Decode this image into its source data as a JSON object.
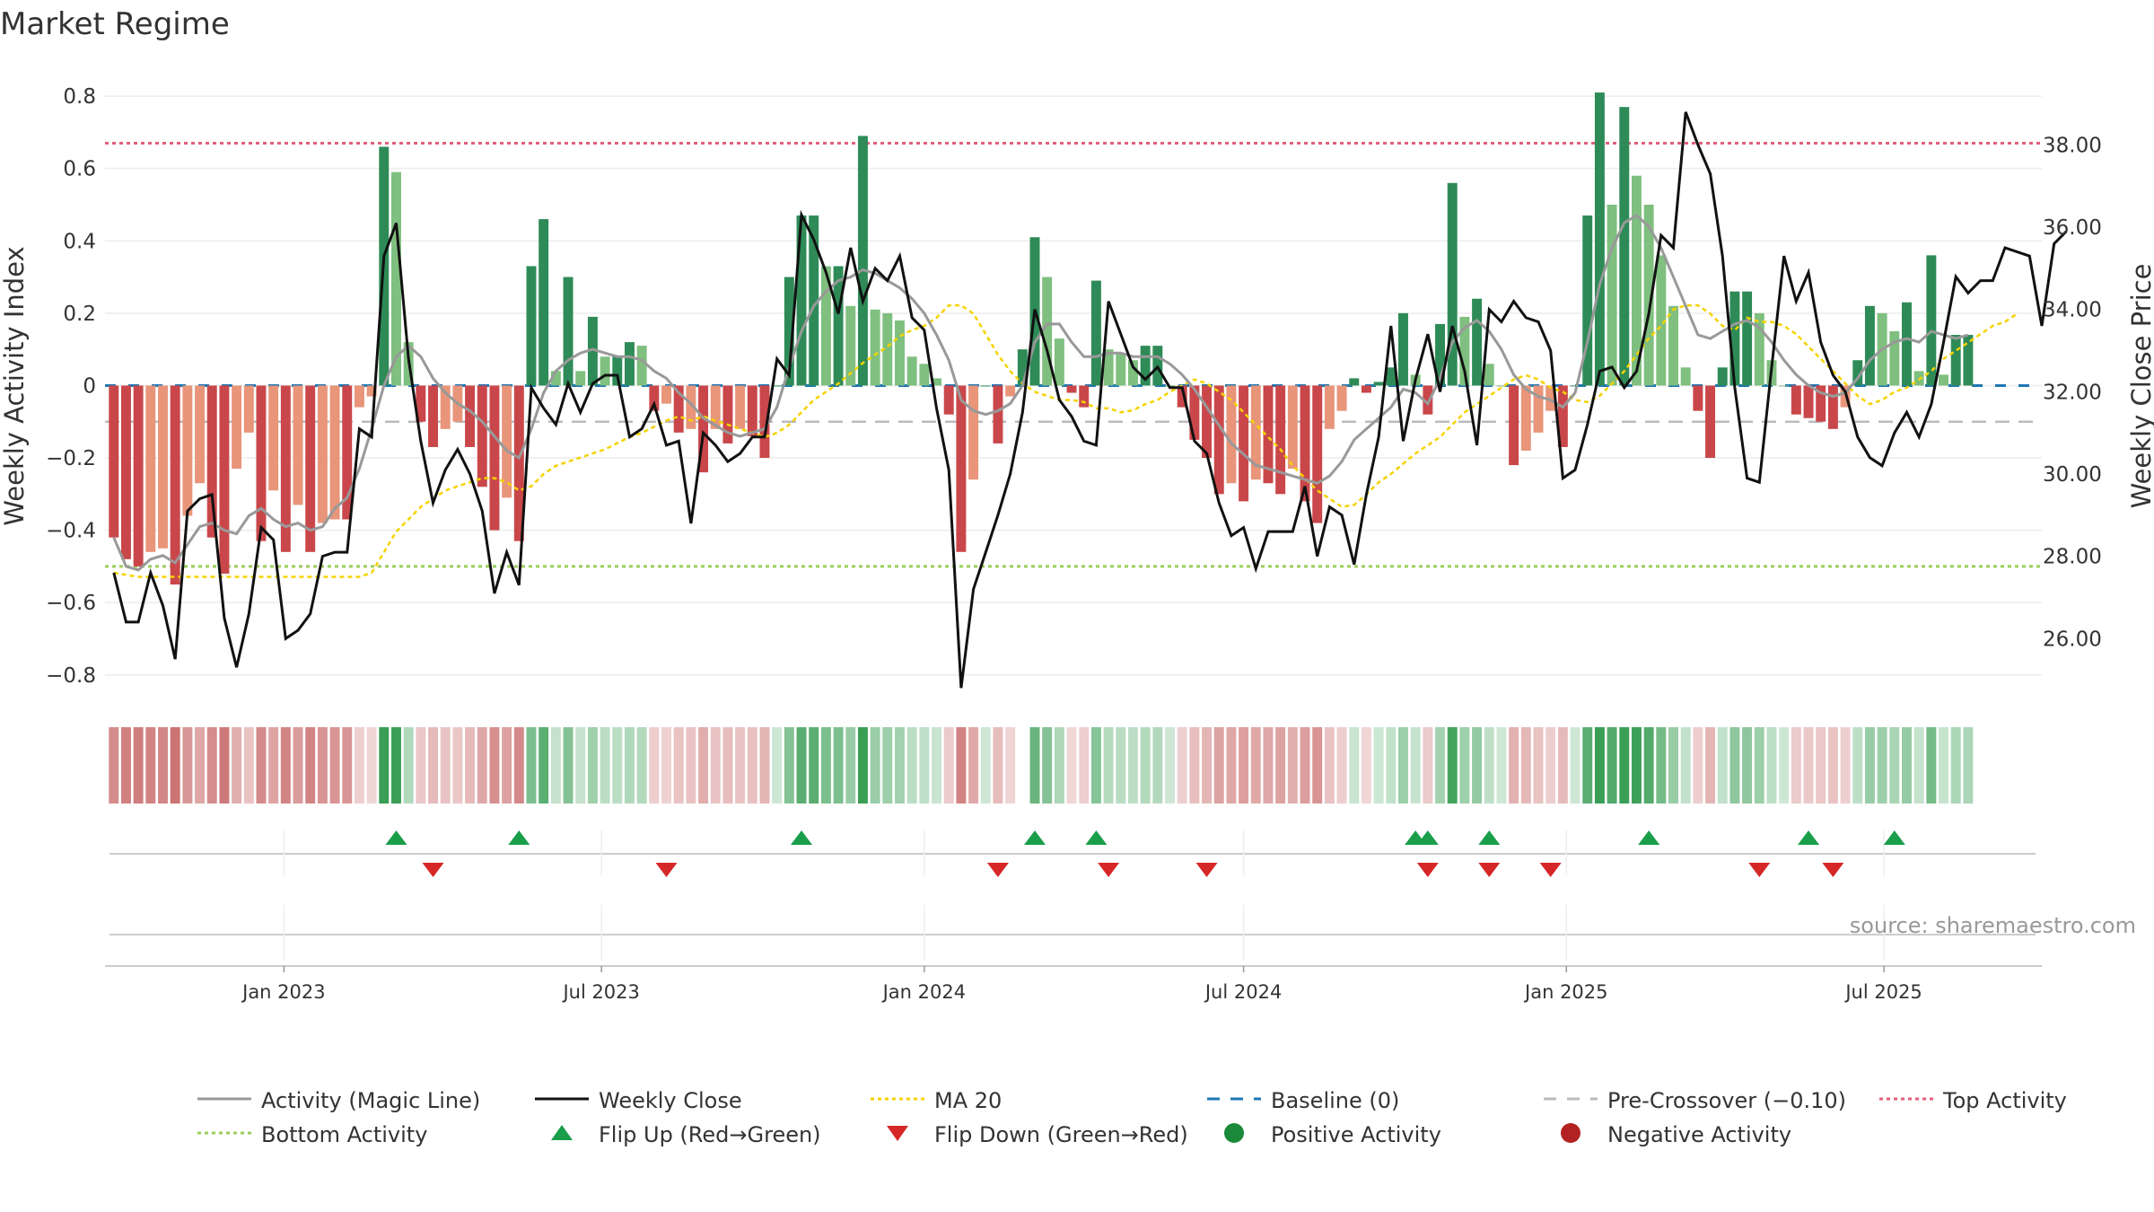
{
  "title": "Market Regime",
  "source": "source: sharemaestro.com",
  "colors": {
    "strong_green": "#2e8b57",
    "light_green": "#7fbf7f",
    "strong_red": "#c9474a",
    "light_red": "#e8957a",
    "magic_line": "#999999",
    "close": "#111111",
    "ma20": "#f5d300",
    "baseline": "#1f77b4",
    "pre_crossover": "#bbbbbb",
    "top": "#e0607a",
    "bottom": "#9acd5a",
    "flip_up": "#1a9e4a",
    "flip_down": "#d62728"
  },
  "chart_data": {
    "type": "bar",
    "x_start": "2022-09-26",
    "x_step_days": 7,
    "xlim": [
      "2022-09-21",
      "2025-09-29"
    ],
    "x_ticks": [
      {
        "date": "2023-01-01",
        "label": "Jan 2023"
      },
      {
        "date": "2023-07-01",
        "label": "Jul 2023"
      },
      {
        "date": "2024-01-01",
        "label": "Jan 2024"
      },
      {
        "date": "2024-07-01",
        "label": "Jul 2024"
      },
      {
        "date": "2025-01-01",
        "label": "Jan 2025"
      },
      {
        "date": "2025-07-01",
        "label": "Jul 2025"
      }
    ],
    "y_left": {
      "label": "Weekly Activity Index",
      "lim": [
        -0.87,
        0.83
      ],
      "ticks": [
        0.8,
        0.6,
        0.4,
        0.2,
        0,
        -0.2,
        -0.4,
        -0.6,
        -0.8
      ],
      "tick_labels": [
        "0.8",
        "0.6",
        "0.4",
        "0.2",
        "0",
        "−0.2",
        "−0.4",
        "−0.6",
        "−0.8"
      ]
    },
    "y_right": {
      "label": "Weekly Close Price",
      "lim": [
        24.5,
        39.45
      ],
      "ticks": [
        38,
        36,
        34,
        32,
        30,
        28,
        26
      ],
      "tick_labels": [
        "38.00",
        "36.00",
        "34.00",
        "32.00",
        "30.00",
        "28.00",
        "26.00"
      ]
    },
    "activity": [
      -0.42,
      -0.48,
      -0.5,
      -0.46,
      -0.45,
      -0.55,
      -0.36,
      -0.27,
      -0.42,
      -0.52,
      -0.23,
      -0.13,
      -0.43,
      -0.29,
      -0.46,
      -0.33,
      -0.46,
      -0.38,
      -0.37,
      -0.37,
      -0.06,
      -0.03,
      0.66,
      0.59,
      0.12,
      -0.1,
      -0.17,
      -0.12,
      -0.1,
      -0.17,
      -0.28,
      -0.4,
      -0.31,
      -0.43,
      0.33,
      0.46,
      0.04,
      0.3,
      0.04,
      0.19,
      0.08,
      0.08,
      0.12,
      0.11,
      -0.07,
      -0.05,
      -0.13,
      -0.12,
      -0.24,
      -0.12,
      -0.16,
      -0.12,
      -0.14,
      -0.2,
      0.0,
      0.3,
      0.47,
      0.47,
      0.33,
      0.33,
      0.22,
      0.69,
      0.21,
      0.2,
      0.18,
      0.08,
      0.06,
      0.02,
      -0.08,
      -0.46,
      -0.26,
      0.0,
      -0.16,
      -0.03,
      0.1,
      0.41,
      0.3,
      0.13,
      -0.02,
      -0.06,
      0.29,
      0.1,
      0.09,
      0.07,
      0.11,
      0.11,
      0.0,
      -0.06,
      -0.15,
      -0.2,
      -0.3,
      -0.27,
      -0.32,
      -0.26,
      -0.27,
      -0.3,
      -0.23,
      -0.32,
      -0.38,
      -0.12,
      -0.07,
      0.02,
      -0.02,
      0.01,
      0.05,
      0.2,
      0.03,
      -0.08,
      0.17,
      0.56,
      0.19,
      0.24,
      0.06,
      0.0,
      -0.22,
      -0.18,
      -0.13,
      -0.07,
      -0.17,
      0.0,
      0.47,
      0.81,
      0.5,
      0.77,
      0.58,
      0.5,
      0.36,
      0.22,
      0.05,
      -0.07,
      -0.2,
      0.05,
      0.26,
      0.26,
      0.2,
      0.07,
      0.0,
      -0.08,
      -0.09,
      -0.1,
      -0.12,
      -0.06,
      0.07,
      0.22,
      0.2,
      0.15,
      0.23,
      0.04,
      0.36,
      0.03,
      0.14,
      0.14
    ],
    "magic_line": [
      -0.42,
      -0.5,
      -0.51,
      -0.48,
      -0.47,
      -0.49,
      -0.44,
      -0.39,
      -0.38,
      -0.4,
      -0.41,
      -0.36,
      -0.34,
      -0.37,
      -0.39,
      -0.38,
      -0.4,
      -0.39,
      -0.34,
      -0.31,
      -0.23,
      -0.12,
      0.0,
      0.08,
      0.11,
      0.08,
      0.02,
      -0.02,
      -0.05,
      -0.07,
      -0.1,
      -0.14,
      -0.18,
      -0.2,
      -0.12,
      -0.02,
      0.04,
      0.07,
      0.09,
      0.1,
      0.09,
      0.08,
      0.08,
      0.07,
      0.04,
      0.02,
      -0.02,
      -0.05,
      -0.09,
      -0.11,
      -0.13,
      -0.14,
      -0.13,
      -0.12,
      -0.06,
      0.05,
      0.15,
      0.22,
      0.26,
      0.29,
      0.3,
      0.32,
      0.31,
      0.29,
      0.27,
      0.24,
      0.2,
      0.14,
      0.07,
      -0.04,
      -0.07,
      -0.08,
      -0.07,
      -0.05,
      0.0,
      0.12,
      0.17,
      0.17,
      0.12,
      0.08,
      0.08,
      0.09,
      0.09,
      0.08,
      0.08,
      0.08,
      0.06,
      0.03,
      -0.01,
      -0.06,
      -0.11,
      -0.16,
      -0.19,
      -0.22,
      -0.23,
      -0.24,
      -0.25,
      -0.26,
      -0.27,
      -0.25,
      -0.21,
      -0.15,
      -0.12,
      -0.09,
      -0.06,
      -0.01,
      -0.02,
      -0.05,
      0.02,
      0.12,
      0.16,
      0.18,
      0.15,
      0.1,
      0.03,
      -0.01,
      -0.03,
      -0.04,
      -0.06,
      -0.02,
      0.12,
      0.28,
      0.38,
      0.45,
      0.47,
      0.44,
      0.38,
      0.3,
      0.22,
      0.14,
      0.13,
      0.15,
      0.17,
      0.18,
      0.16,
      0.12,
      0.07,
      0.03,
      0.0,
      -0.02,
      -0.03,
      -0.02,
      0.02,
      0.07,
      0.1,
      0.12,
      0.13,
      0.12,
      0.15,
      0.14,
      0.13,
      0.14
    ],
    "weekly_close": [
      27.6,
      26.4,
      26.4,
      27.6,
      26.8,
      25.5,
      29.1,
      29.4,
      29.5,
      26.5,
      25.3,
      26.6,
      28.7,
      28.4,
      26.0,
      26.2,
      26.6,
      28.0,
      28.1,
      28.1,
      31.1,
      30.9,
      35.3,
      36.1,
      32.8,
      30.8,
      29.3,
      30.1,
      30.6,
      30.0,
      29.1,
      27.1,
      28.1,
      27.3,
      32.1,
      31.6,
      31.2,
      32.2,
      31.5,
      32.2,
      32.4,
      32.4,
      30.9,
      31.1,
      31.7,
      30.7,
      30.8,
      28.8,
      31.0,
      30.7,
      30.3,
      30.5,
      30.9,
      30.9,
      32.8,
      32.4,
      36.3,
      35.7,
      34.9,
      33.9,
      35.5,
      34.2,
      35.0,
      34.7,
      35.3,
      33.8,
      33.5,
      31.6,
      30.1,
      24.8,
      27.2,
      28.1,
      29.0,
      30.0,
      31.5,
      34.0,
      33.0,
      31.8,
      31.4,
      30.8,
      30.7,
      34.2,
      33.4,
      32.6,
      32.3,
      32.6,
      32.1,
      32.1,
      30.8,
      30.5,
      29.3,
      28.5,
      28.7,
      27.7,
      28.6,
      28.6,
      28.6,
      29.7,
      28.0,
      29.2,
      29.0,
      27.8,
      29.5,
      30.9,
      33.6,
      30.8,
      32.3,
      33.4,
      32.0,
      33.6,
      32.5,
      30.7,
      34.0,
      33.7,
      34.2,
      33.8,
      33.7,
      33.0,
      29.9,
      30.1,
      31.2,
      32.5,
      32.6,
      32.1,
      32.5,
      33.9,
      35.8,
      35.5,
      38.8,
      38.0,
      37.3,
      35.3,
      32.1,
      29.9,
      29.8,
      32.6,
      35.3,
      34.2,
      34.9,
      33.2,
      32.4,
      32.0,
      30.9,
      30.4,
      30.2,
      31.0,
      31.5,
      30.9,
      31.7,
      33.2,
      34.8,
      34.4,
      34.7,
      34.7,
      35.5,
      35.4,
      35.3,
      33.6,
      35.6,
      35.9
    ],
    "ma20": [
      27.6,
      27.55,
      27.5,
      27.5,
      27.5,
      27.5,
      27.5,
      27.5,
      27.5,
      27.5,
      27.5,
      27.5,
      27.5,
      27.5,
      27.5,
      27.5,
      27.5,
      27.5,
      27.5,
      27.5,
      27.5,
      27.6,
      28.1,
      28.6,
      28.9,
      29.2,
      29.4,
      29.6,
      29.7,
      29.8,
      29.9,
      29.9,
      29.8,
      29.6,
      29.7,
      30.0,
      30.2,
      30.3,
      30.4,
      30.5,
      30.6,
      30.75,
      30.9,
      31.0,
      31.15,
      31.3,
      31.4,
      31.3,
      31.4,
      31.3,
      31.2,
      31.1,
      31.0,
      30.9,
      31.0,
      31.2,
      31.5,
      31.8,
      32.0,
      32.2,
      32.45,
      32.7,
      32.9,
      33.1,
      33.35,
      33.5,
      33.6,
      33.8,
      34.1,
      34.1,
      33.9,
      33.4,
      32.9,
      32.5,
      32.2,
      32.0,
      31.9,
      31.8,
      31.8,
      31.75,
      31.6,
      31.6,
      31.5,
      31.55,
      31.7,
      31.8,
      32.0,
      32.15,
      32.3,
      32.2,
      32.0,
      31.8,
      31.5,
      31.2,
      30.9,
      30.6,
      30.2,
      29.9,
      29.6,
      29.4,
      29.2,
      29.25,
      29.5,
      29.8,
      30.0,
      30.25,
      30.5,
      30.7,
      30.9,
      31.2,
      31.5,
      31.7,
      31.9,
      32.1,
      32.3,
      32.4,
      32.3,
      32.1,
      32.0,
      31.8,
      31.75,
      31.9,
      32.2,
      32.5,
      32.9,
      33.3,
      33.6,
      34.0,
      34.1,
      34.1,
      33.9,
      33.6,
      33.5,
      33.8,
      33.7,
      33.7,
      33.6,
      33.4,
      33.1,
      32.8,
      32.5,
      32.2,
      31.9,
      31.7,
      31.8,
      32.0,
      32.1,
      32.3,
      32.5,
      32.8,
      33.0,
      33.2,
      33.4,
      33.6,
      33.7,
      33.9
    ],
    "baseline": 0,
    "pre_crossover": -0.1,
    "top_activity": 0.67,
    "bottom_activity": -0.5,
    "flip_up_dates": [
      "2023-03-06",
      "2023-05-15",
      "2023-10-23",
      "2024-03-04",
      "2024-04-08",
      "2024-10-07",
      "2024-10-14",
      "2024-11-18",
      "2025-02-17",
      "2025-05-19",
      "2025-07-07"
    ],
    "flip_down_dates": [
      "2023-03-27",
      "2023-08-07",
      "2024-02-12",
      "2024-04-15",
      "2024-06-10",
      "2024-10-14",
      "2024-11-18",
      "2024-12-23",
      "2025-04-21",
      "2025-06-02"
    ]
  },
  "legend": [
    {
      "label": "Activity (Magic Line)",
      "kind": "line",
      "color": "#999999"
    },
    {
      "label": "Weekly Close",
      "kind": "line",
      "color": "#111111"
    },
    {
      "label": "MA 20",
      "kind": "dotted",
      "color": "#f5d300"
    },
    {
      "label": "Baseline (0)",
      "kind": "dashed",
      "color": "#1f77b4"
    },
    {
      "label": "Pre-Crossover (−0.10)",
      "kind": "dashed",
      "color": "#bbbbbb"
    },
    {
      "label": "Top Activity",
      "kind": "dotted",
      "color": "#e0607a"
    },
    {
      "label": "Bottom Activity",
      "kind": "dotted",
      "color": "#9acd5a"
    },
    {
      "label": "Flip Up (Red→Green)",
      "kind": "tri-up",
      "color": "#1a9e4a"
    },
    {
      "label": "Flip Down (Green→Red)",
      "kind": "tri-down",
      "color": "#d62728"
    },
    {
      "label": "Positive Activity",
      "kind": "dot",
      "color": "#1a8a3a"
    },
    {
      "label": "Negative Activity",
      "kind": "dot",
      "color": "#b22222"
    }
  ]
}
